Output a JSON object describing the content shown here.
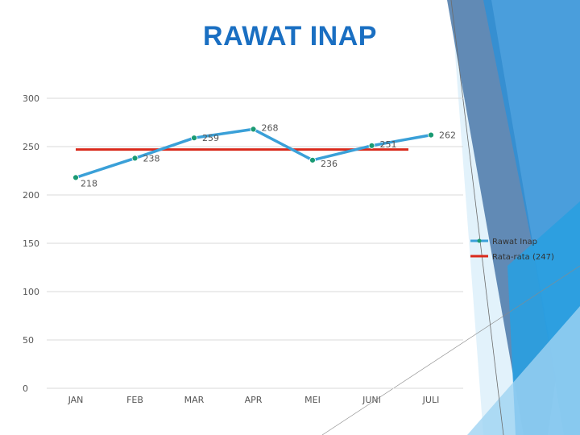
{
  "slide": {
    "title": "RAWAT INAP"
  },
  "chart_data": {
    "type": "line",
    "categories": [
      "JAN",
      "FEB",
      "MAR",
      "APR",
      "MEI",
      "JUNI",
      "JULI"
    ],
    "series": [
      {
        "name": "Rawat Inap",
        "values": [
          218,
          238,
          259,
          268,
          236,
          251,
          262
        ],
        "color": "#3aa0d8",
        "marker_color": "#1a9a73"
      },
      {
        "name": "Rata-rata (247)",
        "values": [
          247,
          247,
          247,
          247,
          247,
          247,
          247
        ],
        "color": "#d92a1c"
      }
    ],
    "yticks": [
      0,
      50,
      100,
      150,
      200,
      250,
      300
    ],
    "ylim": [
      0,
      300
    ],
    "grid": true,
    "legend_position": "right",
    "data_labels": true
  },
  "colors": {
    "title": "#1a6fc2",
    "grid": "#d9d9d9",
    "decor_blue": "#2f8fd6",
    "decor_light": "#9fd3f2",
    "decor_steel": "#4a78a8"
  }
}
